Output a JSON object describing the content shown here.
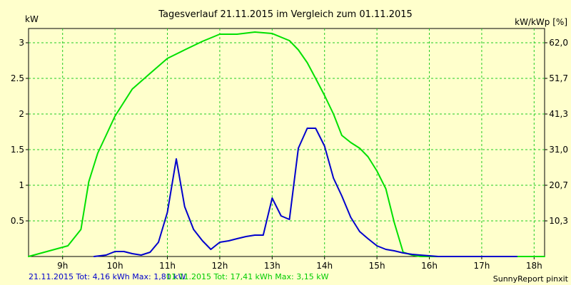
{
  "chart_data": {
    "type": "line",
    "title": "Tagesverlauf 21.11.2015 im Vergleich zum 01.11.2015",
    "ylabel": "kW",
    "y2label": "kW/kWp [%]",
    "xlim": [
      8.35,
      18.2
    ],
    "ylim": [
      0,
      3.2
    ],
    "x_ticks": [
      9,
      10,
      11,
      12,
      13,
      14,
      15,
      16,
      17,
      18
    ],
    "x_tick_labels": [
      "9h",
      "10h",
      "11h",
      "12h",
      "13h",
      "14h",
      "15h",
      "16h",
      "17h",
      "18h"
    ],
    "y_ticks": [
      0.5,
      1,
      1.5,
      2,
      2.5,
      3
    ],
    "y_tick_labels": [
      "0.5",
      "1",
      "1.5",
      "2",
      "2.5",
      "3"
    ],
    "y2_ticks": [
      0.5,
      1,
      1.5,
      2,
      2.5,
      3
    ],
    "y2_tick_labels": [
      "10,3",
      "20,7",
      "31,0",
      "41,3",
      "51,7",
      "62,0"
    ],
    "grid": true,
    "series": [
      {
        "name": "21.11.2015",
        "color": "#0000cc",
        "x": [
          9.6,
          9.83,
          10.0,
          10.17,
          10.33,
          10.5,
          10.67,
          10.83,
          11.0,
          11.17,
          11.33,
          11.5,
          11.67,
          11.83,
          12.0,
          12.17,
          12.33,
          12.5,
          12.67,
          12.83,
          13.0,
          13.17,
          13.33,
          13.5,
          13.67,
          13.83,
          14.0,
          14.17,
          14.33,
          14.5,
          14.67,
          14.83,
          15.0,
          15.17,
          15.33,
          15.5,
          15.67,
          15.83,
          16.0,
          16.17,
          16.33,
          16.5,
          16.67,
          16.83,
          17.0,
          17.17,
          17.33,
          17.5,
          17.67
        ],
        "values": [
          0.0,
          0.02,
          0.07,
          0.07,
          0.04,
          0.02,
          0.06,
          0.2,
          0.62,
          1.37,
          0.7,
          0.38,
          0.22,
          0.1,
          0.2,
          0.22,
          0.25,
          0.28,
          0.3,
          0.3,
          0.82,
          0.57,
          0.52,
          1.52,
          1.8,
          1.8,
          1.55,
          1.1,
          0.85,
          0.55,
          0.35,
          0.25,
          0.15,
          0.1,
          0.08,
          0.05,
          0.03,
          0.02,
          0.01,
          0.0,
          0.0,
          0.0,
          0.0,
          0.0,
          0.0,
          0.0,
          0.0,
          0.0,
          0.0
        ]
      },
      {
        "name": "01.11.2015",
        "color": "#00e000",
        "x": [
          8.35,
          8.6,
          8.85,
          9.1,
          9.35,
          9.5,
          9.67,
          9.83,
          10.0,
          10.33,
          10.67,
          11.0,
          11.33,
          11.67,
          12.0,
          12.33,
          12.67,
          13.0,
          13.33,
          13.5,
          13.67,
          13.83,
          14.0,
          14.17,
          14.33,
          14.5,
          14.67,
          14.83,
          15.0,
          15.17,
          15.33,
          15.5,
          15.67,
          15.83,
          16.0,
          16.17,
          16.33,
          16.5,
          16.67,
          16.83,
          17.0,
          17.17,
          17.33,
          17.67,
          18.0,
          18.2
        ],
        "values": [
          0.0,
          0.05,
          0.1,
          0.15,
          0.38,
          1.05,
          1.45,
          1.7,
          1.97,
          2.35,
          2.57,
          2.78,
          2.9,
          3.02,
          3.12,
          3.12,
          3.15,
          3.13,
          3.03,
          2.9,
          2.72,
          2.5,
          2.26,
          2.0,
          1.7,
          1.6,
          1.52,
          1.4,
          1.2,
          0.95,
          0.48,
          0.06,
          0.02,
          0.0,
          0.0,
          0.0,
          0.0,
          0.0,
          0.0,
          0.0,
          0.0,
          0.0,
          0.0,
          0.0,
          0.0,
          0.0
        ]
      }
    ],
    "footer": {
      "blue_text": "21.11.2015 Tot: 4,16 kWh Max: 1,81 kW",
      "green_text": "01.11.2015 Tot: 17,41 kWh Max: 3,15 kW",
      "credit": "SunnyReport pinxit"
    }
  }
}
